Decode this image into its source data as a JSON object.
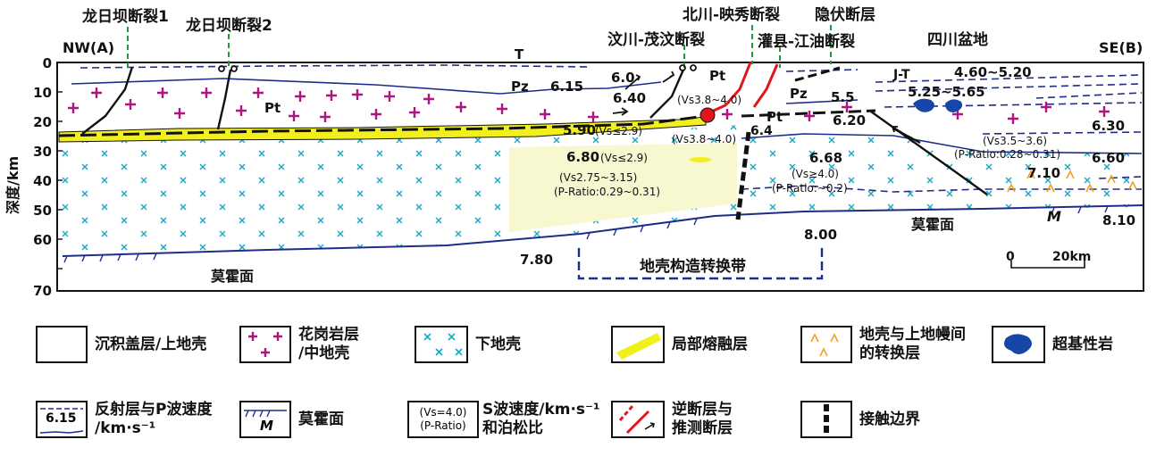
{
  "section": {
    "endpoint_left": "NW(A)",
    "endpoint_right": "SE(B)",
    "depth_axis_label": "深度/km",
    "depth_ticks": [
      "0",
      "10",
      "20",
      "30",
      "40",
      "50",
      "60",
      "70"
    ],
    "faults": {
      "longriba1": "龙日坝断裂1",
      "longriba2": "龙日坝断裂2",
      "wenchuan": "汶川-茂汶断裂",
      "beichuan": "北川-映秀断裂",
      "guanxian": "灌县-江油断裂",
      "hidden": "隐伏断层"
    },
    "region_sichuan": "四川盆地",
    "units": {
      "t": "T",
      "pz1": "Pz",
      "pz2": "Pz",
      "pt1": "Pt",
      "pt2": "Pt",
      "pt3": "Pt",
      "jt": "J-T"
    },
    "velocities": {
      "v615": "6.15",
      "v60": "6.0",
      "v640": "6.40",
      "v590": "5.90",
      "v680": "6.80",
      "v64": "6.4",
      "v55": "5.5",
      "v620": "6.20",
      "v668": "6.68",
      "v460": "4.60~5.20",
      "v525": "5.25~5.65",
      "v630": "6.30",
      "v660": "6.60",
      "v710": "7.10",
      "v780": "7.80",
      "v800": "8.00",
      "v810": "8.10"
    },
    "annotations": {
      "a1": "(Vs3.8~4.0)",
      "a2": "(Vs≤2.9)",
      "a3": "(Vs≤2.9)",
      "a4": "(Vs3.8~4.0)",
      "a5": "(Vs2.75~3.15)",
      "a6": "(P-Ratio:0.29~0.31)",
      "a7": "(Vs≥4.0)",
      "a8": "(P-Ratio:~0.2)",
      "a9": "(Vs3.5~3.6)",
      "a10": "(P-Ratio:0.28~0.31)"
    },
    "moho_left": "莫霍面",
    "moho_right": "莫霍面",
    "moho_symbol": "M",
    "transition_zone": "地壳构造转换带",
    "scale_zero": "0",
    "scale_20": "20km"
  },
  "legend": {
    "sediment": "沉积盖层/上地壳",
    "granite": "花岗岩层\n/中地壳",
    "lower_crust": "下地壳",
    "melt": "局部熔融层",
    "crust_mantle": "地壳与上地幔间\n的转换层",
    "ultrabasic": "超基性岩",
    "reflector": "反射层与P波速度\n/km·s⁻¹",
    "reflector_sample": "6.15",
    "moho": "莫霍面",
    "moho_sample": "M",
    "vs_sample1": "(Vs=4.0)",
    "vs_sample2": "(P-Ratio)",
    "vs_text": "S波速度/km·s⁻¹\n和泊松比",
    "thrust": "逆断层与\n推测断层",
    "contact": "接触边界"
  },
  "colors": {
    "reflector_blue": "#1f2d8a",
    "granite_magenta": "#b0157f",
    "lower_crust_cyan": "#18a8c4",
    "melt_yellow": "#f2f01c",
    "zone_fill": "#f7f7d0",
    "thrust_red": "#e3141b",
    "fault_green": "#1f9a3c",
    "ultrabasic_blue": "#1646a8",
    "transition_orange": "#f0a020"
  }
}
